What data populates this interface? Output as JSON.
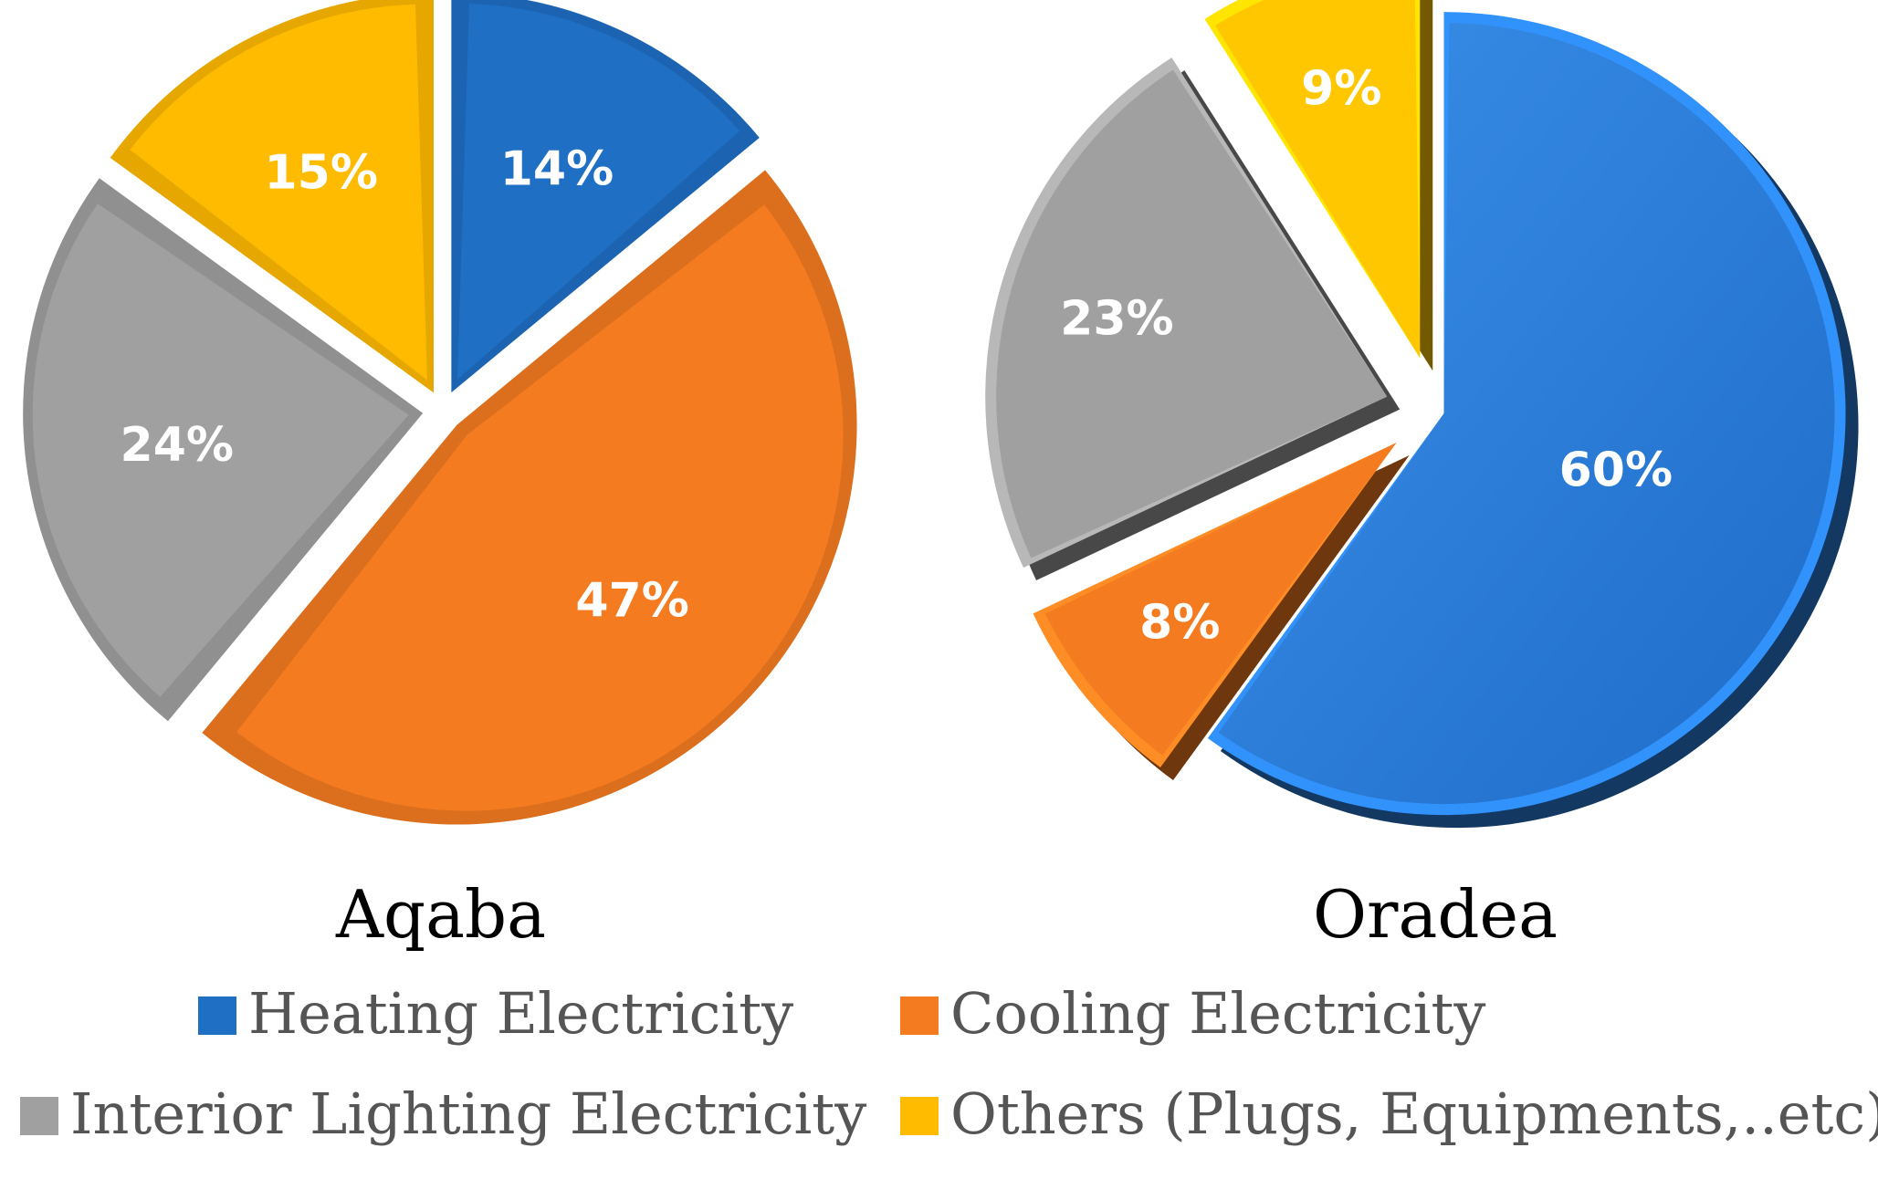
{
  "chart_data": [
    {
      "type": "pie",
      "title": "Aqaba",
      "slices": [
        {
          "category": "Heating Electricity",
          "value": 14,
          "label": "14%"
        },
        {
          "category": "Cooling Electricity",
          "value": 47,
          "label": "47%"
        },
        {
          "category": "Interior Lighting Electricity",
          "value": 24,
          "label": "24%"
        },
        {
          "category": "Others (Plugs, Equipments,..etc)",
          "value": 15,
          "label": "15%"
        }
      ],
      "exploded": true
    },
    {
      "type": "pie",
      "title": "Oradea",
      "slices": [
        {
          "category": "Heating Electricity",
          "value": 60,
          "label": "60%"
        },
        {
          "category": "Cooling Electricity",
          "value": 8,
          "label": "8%"
        },
        {
          "category": "Interior Lighting Electricity",
          "value": 23,
          "label": "23%"
        },
        {
          "category": "Others (Plugs, Equipments,..etc)",
          "value": 9,
          "label": "9%"
        }
      ],
      "exploded": true,
      "style": "3d-bevel"
    }
  ],
  "legend": {
    "placement": "bottom",
    "items": [
      {
        "label": "Heating Electricity",
        "color": "#1F6FC5"
      },
      {
        "label": "Cooling Electricity",
        "color": "#F47B20"
      },
      {
        "label": "Interior Lighting Electricity",
        "color": "#A0A0A0"
      },
      {
        "label": "Others (Plugs, Equipments,..etc)",
        "color": "#FFBB00"
      }
    ]
  },
  "colors": {
    "heating": "#1F6FC5",
    "heating_oradea": "#2B7FDB",
    "cooling": "#F47B20",
    "lighting": "#A0A0A0",
    "others": "#FFBB00",
    "others_oradea": "#FFC700"
  }
}
